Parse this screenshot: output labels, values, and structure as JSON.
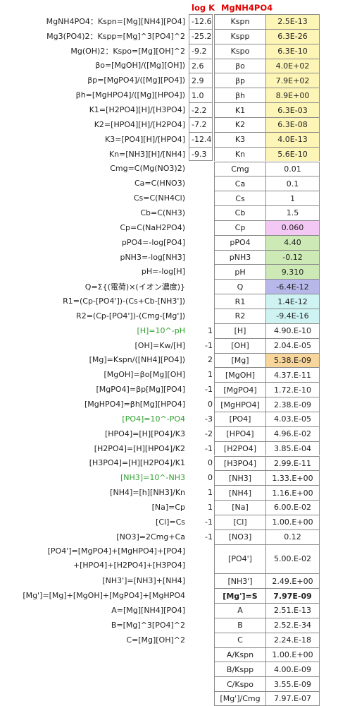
{
  "headers": {
    "logk": "log K",
    "compound": "MgNH4PO4"
  },
  "colors": {
    "yellow": "#fdf5b6",
    "pink": "#f4c8f4",
    "green": "#cde9b6",
    "lavender": "#b7b7ea",
    "lightblue": "#cff3f3",
    "gold": "#f7d59b",
    "formula_green": "#2ea02e",
    "header_red": "#e00000"
  },
  "rows": [
    {
      "formula": "MgNH4PO4：Kspn=[Mg][NH4][PO4]",
      "logk": "-12.6",
      "name": "Kspn",
      "value": "2.5E-13",
      "bg": "yellow"
    },
    {
      "formula": "Mg3(PO4)2：Kspp=[Mg]^3[PO4]^2",
      "logk": "-25.2",
      "name": "Kspp",
      "value": "6.3E-26",
      "bg": "yellow"
    },
    {
      "formula": "Mg(OH)2：Kspo=[Mg][OH]^2",
      "logk": "-9.2",
      "name": "Kspo",
      "value": "6.3E-10",
      "bg": "yellow"
    },
    {
      "formula": "βo=[MgOH]/([Mg][OH])",
      "logk": "2.6",
      "name": "βo",
      "value": "4.0E+02",
      "bg": "yellow"
    },
    {
      "formula": "βp=[MgPO4]/([Mg][PO4])",
      "logk": "2.9",
      "name": "βp",
      "value": "7.9E+02",
      "bg": "yellow"
    },
    {
      "formula": "βh=[MgHPO4]/([Mg][HPO4])",
      "logk": "1.0",
      "name": "βh",
      "value": "8.9E+00",
      "bg": "yellow"
    },
    {
      "formula": "K1=[H2PO4][H]/[H3PO4]",
      "logk": "-2.2",
      "name": "K1",
      "value": "6.3E-03",
      "bg": "yellow"
    },
    {
      "formula": "K2=[HPO4][H]/[H2PO4]",
      "logk": "-7.2",
      "name": "K2",
      "value": "6.3E-08",
      "bg": "yellow"
    },
    {
      "formula": "K3=[PO4][H]/[HPO4]",
      "logk": "-12.4",
      "name": "K3",
      "value": "4.0E-13",
      "bg": "yellow"
    },
    {
      "formula": "Kn=[NH3][H]/[NH4]",
      "logk": "-9.3",
      "name": "Kn",
      "value": "5.6E-10",
      "bg": "yellow"
    },
    {
      "formula": "Cmg=C(Mg(NO3)2)",
      "name": "Cmg",
      "value": "0.01"
    },
    {
      "formula": "Ca=C(HNO3)",
      "name": "Ca",
      "value": "0.1"
    },
    {
      "formula": "Cs=C(NH4Cl)",
      "name": "Cs",
      "value": "1"
    },
    {
      "formula": "Cb=C(NH3)",
      "name": "Cb",
      "value": "1.5"
    },
    {
      "formula": "Cp=C(NaH2PO4)",
      "name": "Cp",
      "value": "0.060",
      "bg": "pink"
    },
    {
      "formula": "pPO4=-log[PO4]",
      "name": "pPO4",
      "value": "4.40",
      "bg": "green"
    },
    {
      "formula": "pNH3=-log[NH3]",
      "name": "pNH3",
      "value": "-0.12",
      "bg": "green"
    },
    {
      "formula": "pH=-log[H]",
      "name": "pH",
      "value": "9.310",
      "bg": "green"
    },
    {
      "formula": "Q=Σ{(電荷)×(イオン濃度)}",
      "name": "Q",
      "value": "-6.4E-12",
      "bg": "lavender"
    },
    {
      "formula": "R1=(Cp-[PO4'])-(Cs+Cb-[NH3'])",
      "name": "R1",
      "value": "1.4E-12",
      "bg": "lightblue"
    },
    {
      "formula": "R2=(Cp-[PO4'])-(Cmg-[Mg'])",
      "name": "R2",
      "value": "-9.4E-16",
      "bg": "lightblue"
    },
    {
      "formula": "[H]=10^-pH",
      "green": true,
      "coef": "1",
      "name": "[H]",
      "value": "4.90.E-10"
    },
    {
      "formula": "[OH]=Kw/[H]",
      "coef": "-1",
      "name": "[OH]",
      "value": "2.04.E-05"
    },
    {
      "formula": "[Mg]=Kspn/([NH4][PO4])",
      "coef": "2",
      "name": "[Mg]",
      "value": "5.38.E-09",
      "bg": "gold"
    },
    {
      "formula": "[MgOH]=βo[Mg][OH]",
      "coef": "1",
      "name": "[MgOH]",
      "value": "4.37.E-11"
    },
    {
      "formula": "[MgPO4]=βp[Mg][PO4]",
      "coef": "-1",
      "name": "[MgPO4]",
      "value": "1.72.E-10"
    },
    {
      "formula": "[MgHPO4]=βh[Mg][HPO4]",
      "coef": "0",
      "name": "[MgHPO4]",
      "value": "2.38.E-09"
    },
    {
      "formula": "[PO4]=10^-PO4",
      "green": true,
      "coef": "-3",
      "name": "[PO4]",
      "value": "4.03.E-05"
    },
    {
      "formula": "[HPO4]=[H][PO4]/K3",
      "coef": "-2",
      "name": "[HPO4]",
      "value": "4.96.E-02"
    },
    {
      "formula": "[H2PO4]=[H][HPO4]/K2",
      "coef": "-1",
      "name": "[H2PO4]",
      "value": "3.85.E-04"
    },
    {
      "formula": "[H3PO4]=[H][H2PO4]/K1",
      "coef": "0",
      "name": "[H3PO4]",
      "value": "2.99.E-11"
    },
    {
      "formula": "[NH3]=10^-NH3",
      "green": true,
      "coef": "0",
      "name": "[NH3]",
      "value": "1.33.E+00"
    },
    {
      "formula": "[NH4]=[h][NH3]/Kn",
      "coef": "1",
      "name": "[NH4]",
      "value": "1.16.E+00"
    },
    {
      "formula": "[Na]=Cp",
      "coef": "1",
      "name": "[Na]",
      "value": "6.00.E-02"
    },
    {
      "formula": "[Cl]=Cs",
      "coef": "-1",
      "name": "[Cl]",
      "value": "1.00.E+00"
    },
    {
      "formula": "[NO3]=2Cmg+Ca",
      "coef": "-1",
      "name": "[NO3]",
      "value": "0.12"
    },
    {
      "formula": "[PO4']=[MgPO4]+[MgHPO4]+[PO4]",
      "formula2": "+[HPO4]+[H2PO4]+[H3PO4]",
      "double": true,
      "name": "[PO4']",
      "value": "5.00.E-02"
    },
    {
      "formula": "[NH3']=[NH3]+[NH4]",
      "name": "[NH3']",
      "value": "2.49.E+00"
    },
    {
      "formula": "[Mg']=[Mg]+[MgOH]+[MgPO4]+[MgHPO4",
      "name": "[Mg']=S",
      "value": "7.97E-09",
      "bold": true
    },
    {
      "formula": "A=[Mg][NH4][PO4]",
      "name": "A",
      "value": "2.51.E-13"
    },
    {
      "formula": "B=[Mg]^3[PO4]^2",
      "name": "B",
      "value": "2.52.E-34"
    },
    {
      "formula": "C=[Mg][OH]^2",
      "name": "C",
      "value": "2.24.E-18"
    },
    {
      "name": "A/Kspn",
      "value": "1.00.E+00"
    },
    {
      "name": "B/Kspp",
      "value": "4.00.E-09"
    },
    {
      "name": "C/Kspo",
      "value": "3.55.E-09"
    },
    {
      "name": "[Mg']/Cmg",
      "value": "7.97.E-07"
    }
  ]
}
